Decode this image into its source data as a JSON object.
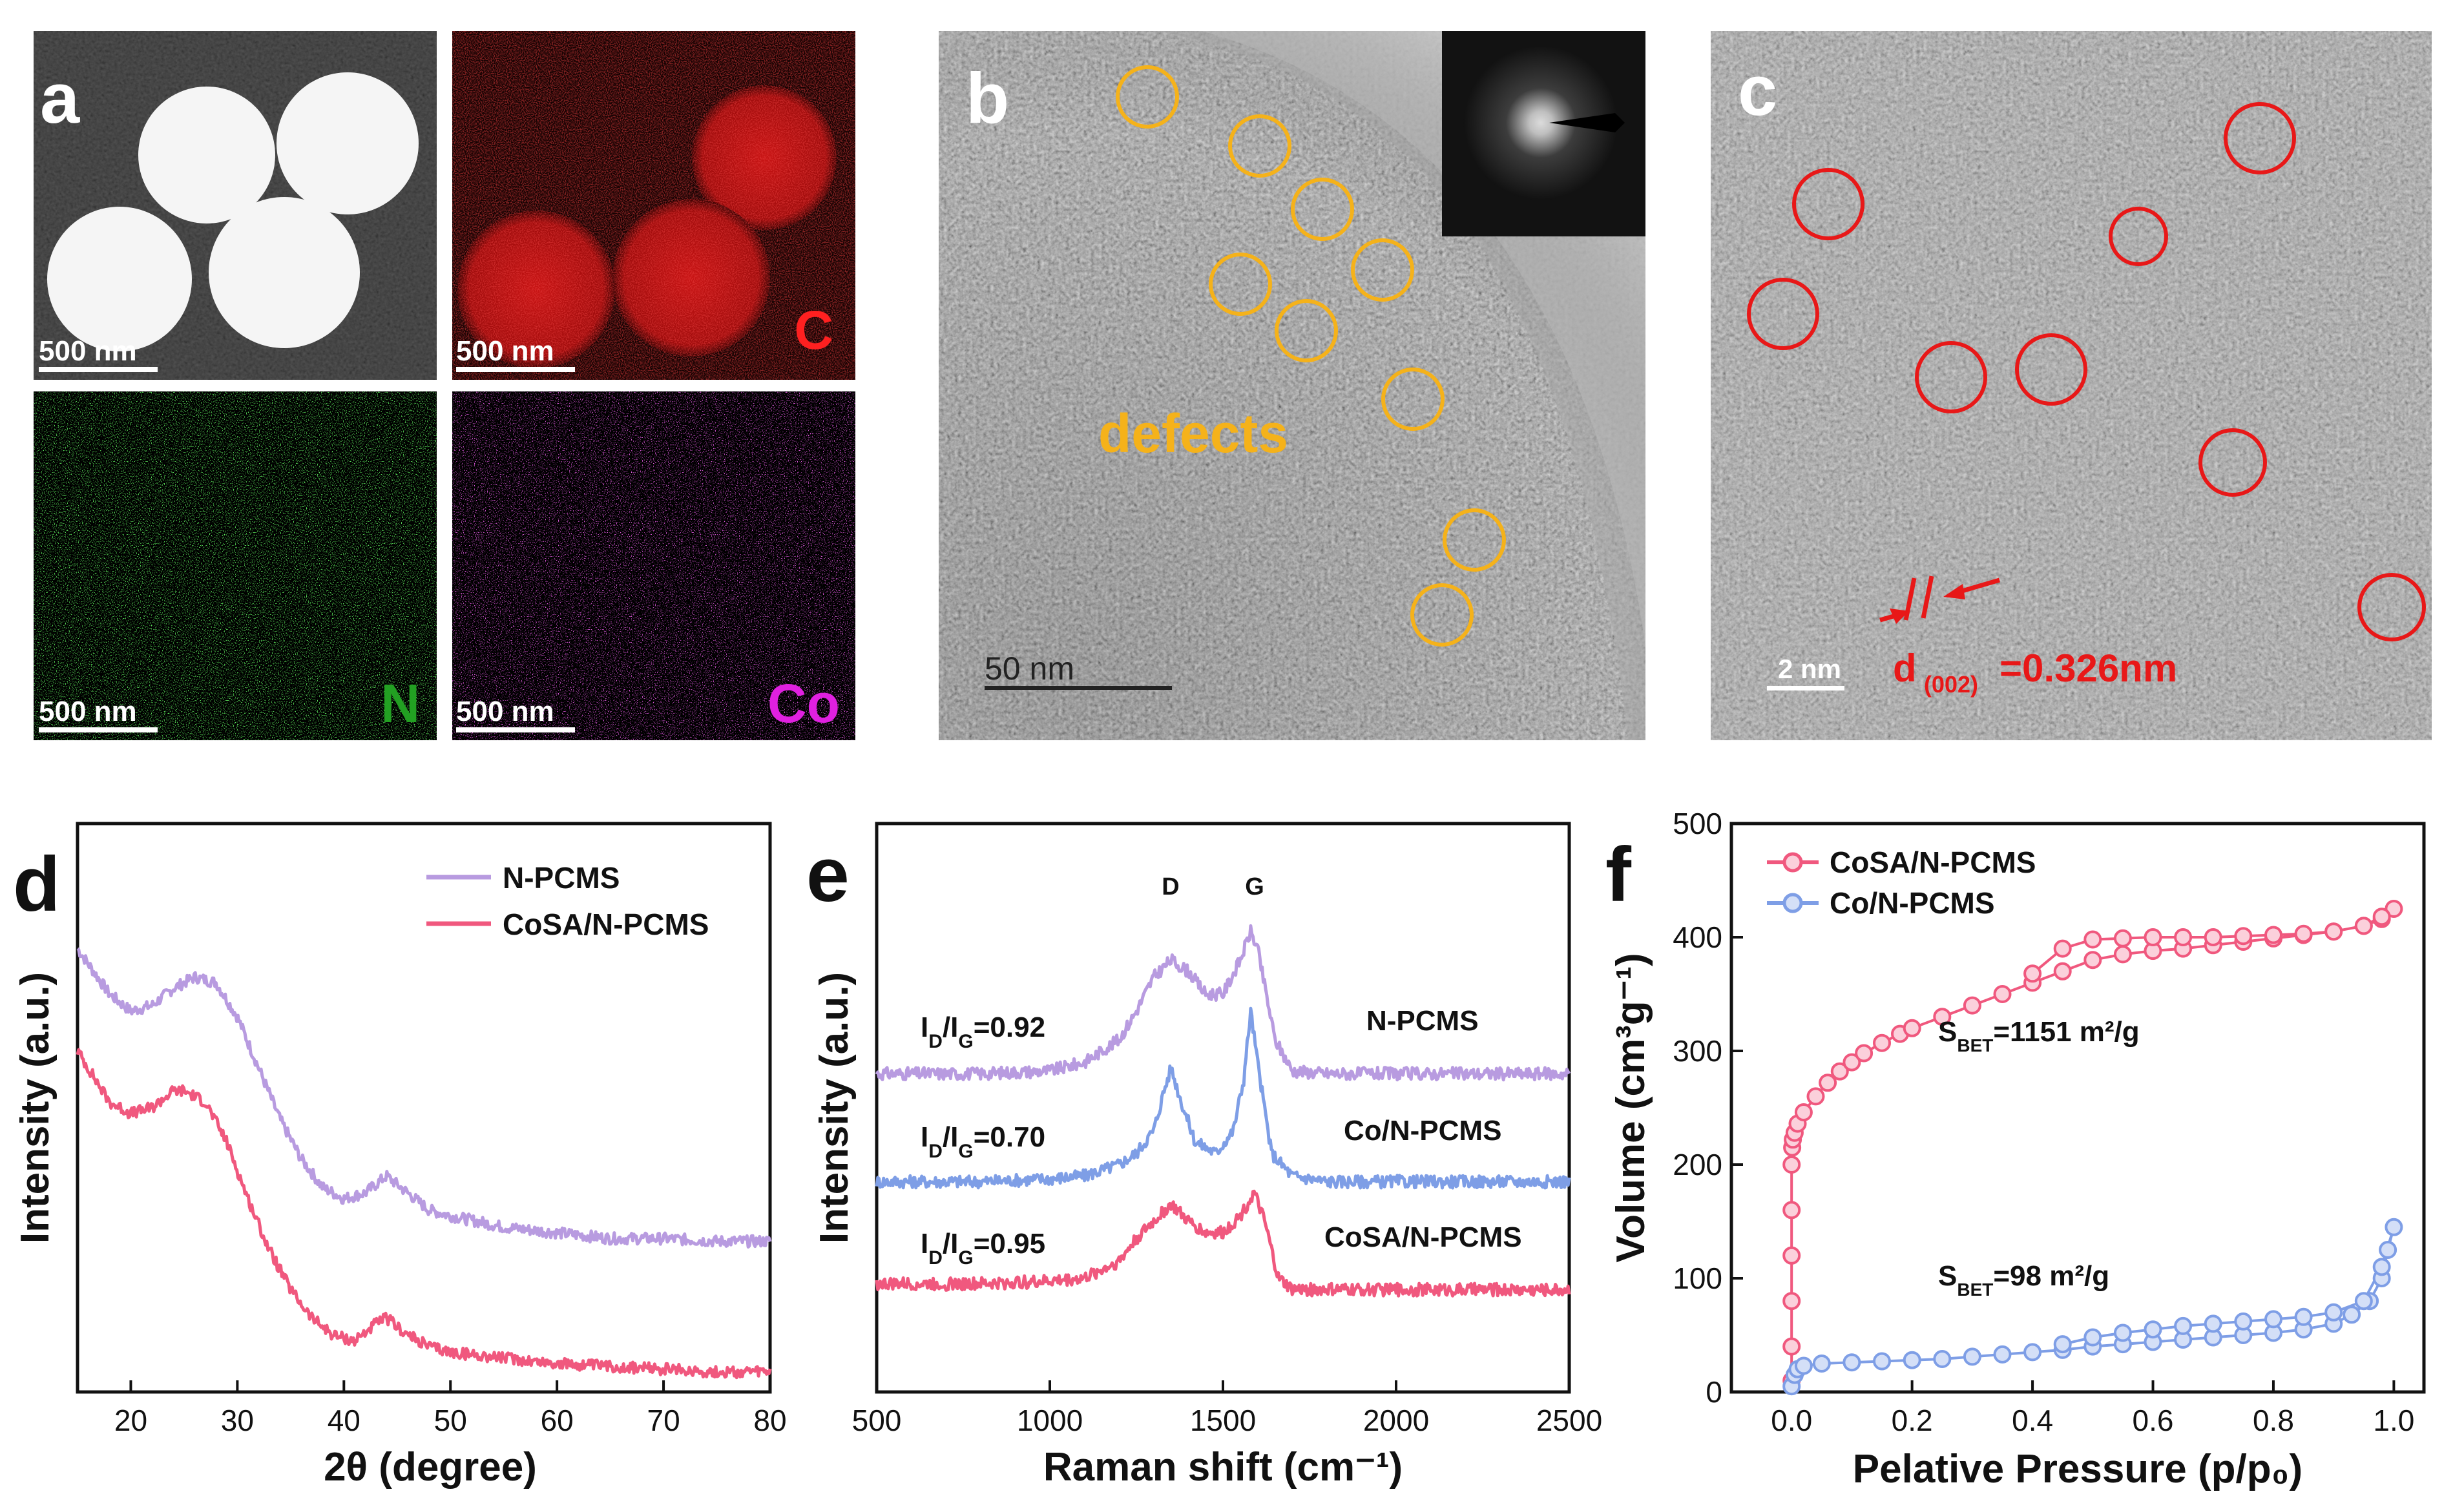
{
  "panel_a": {
    "label": "a",
    "scale_bar": "500 nm",
    "elements": [
      "C",
      "N",
      "Co"
    ],
    "colors": {
      "C": "#e01010",
      "N": "#22a022",
      "Co": "#e020e0"
    }
  },
  "panel_b": {
    "label": "b",
    "annotation": "defects",
    "scale_bar": "50 nm",
    "circle_color": "#f5b21a"
  },
  "panel_c": {
    "label": "c",
    "scale_bar": "2 nm",
    "d_prefix": "d",
    "d_subscript": "(002)",
    "d_value": "=0.326nm",
    "circle_color": "#e81818"
  },
  "chart_data": [
    {
      "panel": "d",
      "type": "line",
      "xlabel": "2θ (degree)",
      "ylabel": "Intensity (a.u.)",
      "xlim": [
        15,
        80
      ],
      "xticks": [
        20,
        30,
        40,
        50,
        60,
        70,
        80
      ],
      "ylim": [
        0,
        1
      ],
      "series": [
        {
          "name": "N-PCMS",
          "color": "#b89be0",
          "x": [
            15,
            18,
            20,
            22,
            24,
            26,
            28,
            30,
            32,
            34,
            36,
            38,
            40,
            42,
            44,
            46,
            48,
            50,
            55,
            60,
            65,
            70,
            75,
            80
          ],
          "y": [
            0.78,
            0.7,
            0.67,
            0.68,
            0.71,
            0.73,
            0.72,
            0.66,
            0.57,
            0.48,
            0.41,
            0.36,
            0.34,
            0.35,
            0.38,
            0.35,
            0.32,
            0.31,
            0.29,
            0.28,
            0.27,
            0.27,
            0.265,
            0.265
          ]
        },
        {
          "name": "CoSA/N-PCMS",
          "color": "#f0587e",
          "x": [
            15,
            18,
            20,
            22,
            24,
            25,
            27,
            29,
            31,
            33,
            35,
            37,
            39,
            41,
            43,
            44,
            46,
            48,
            50,
            55,
            60,
            65,
            70,
            75,
            80
          ],
          "y": [
            0.6,
            0.51,
            0.49,
            0.5,
            0.53,
            0.53,
            0.51,
            0.44,
            0.34,
            0.25,
            0.18,
            0.13,
            0.1,
            0.09,
            0.12,
            0.13,
            0.1,
            0.08,
            0.07,
            0.06,
            0.05,
            0.045,
            0.04,
            0.035,
            0.035
          ]
        }
      ]
    },
    {
      "panel": "e",
      "type": "line",
      "xlabel": "Raman shift (cm⁻¹)",
      "ylabel": "Intensity (a.u.)",
      "xlim": [
        500,
        2500
      ],
      "xticks": [
        500,
        1000,
        1500,
        2000,
        2500
      ],
      "ylim": [
        0,
        1
      ],
      "peak_labels": [
        "D",
        "G"
      ],
      "ratio_labels": [
        "I_D/I_G=0.92",
        "I_D/I_G=0.70",
        "I_D/I_G=0.95"
      ],
      "series": [
        {
          "name": "N-PCMS",
          "color": "#b89be0",
          "x": [
            500,
            800,
            1000,
            1100,
            1200,
            1250,
            1300,
            1350,
            1400,
            1450,
            1500,
            1550,
            1580,
            1600,
            1650,
            1700,
            1800,
            2000,
            2200,
            2500
          ],
          "y": [
            0.56,
            0.56,
            0.565,
            0.58,
            0.62,
            0.67,
            0.73,
            0.76,
            0.74,
            0.7,
            0.7,
            0.76,
            0.81,
            0.78,
            0.62,
            0.565,
            0.56,
            0.56,
            0.56,
            0.56
          ]
        },
        {
          "name": "Co/N-PCMS",
          "color": "#7e9ee6",
          "x": [
            500,
            800,
            1000,
            1100,
            1200,
            1250,
            1300,
            1330,
            1350,
            1380,
            1420,
            1480,
            1530,
            1560,
            1580,
            1600,
            1640,
            1700,
            1800,
            2000,
            2500
          ],
          "y": [
            0.37,
            0.37,
            0.375,
            0.38,
            0.4,
            0.42,
            0.46,
            0.53,
            0.57,
            0.51,
            0.44,
            0.42,
            0.46,
            0.55,
            0.67,
            0.58,
            0.42,
            0.38,
            0.37,
            0.37,
            0.37
          ]
        },
        {
          "name": "CoSA/N-PCMS",
          "color": "#f0587e",
          "x": [
            500,
            800,
            1000,
            1100,
            1200,
            1250,
            1300,
            1350,
            1400,
            1450,
            1500,
            1550,
            1590,
            1620,
            1660,
            1700,
            1800,
            2000,
            2500
          ],
          "y": [
            0.19,
            0.19,
            0.195,
            0.2,
            0.23,
            0.27,
            0.3,
            0.33,
            0.3,
            0.28,
            0.28,
            0.31,
            0.35,
            0.3,
            0.2,
            0.18,
            0.18,
            0.18,
            0.18
          ]
        }
      ]
    },
    {
      "panel": "f",
      "type": "scatter",
      "xlabel": "Pelative Pressure (p/p₀)",
      "ylabel": "Volume (cm³g⁻¹)",
      "xlim": [
        -0.1,
        1.05
      ],
      "xticks": [
        0.0,
        0.2,
        0.4,
        0.6,
        0.8,
        1.0
      ],
      "ylim": [
        0,
        500
      ],
      "yticks": [
        0,
        100,
        200,
        300,
        400,
        500
      ],
      "annotations": [
        "S_BET=1151 m²/g",
        "S_BET=98 m²/g"
      ],
      "series": [
        {
          "name": "CoSA/N-PCMS",
          "color": "#f0587e",
          "marker": "open-circle",
          "x": [
            0.0,
            0.0,
            0.0,
            0.0,
            0.0,
            0.0,
            0.001,
            0.002,
            0.005,
            0.01,
            0.02,
            0.04,
            0.06,
            0.08,
            0.1,
            0.12,
            0.15,
            0.18,
            0.2,
            0.25,
            0.3,
            0.35,
            0.4,
            0.45,
            0.5,
            0.55,
            0.6,
            0.65,
            0.7,
            0.75,
            0.8,
            0.85,
            0.9,
            0.95,
            0.98,
            1.0,
            0.98,
            0.95,
            0.9,
            0.85,
            0.8,
            0.75,
            0.7,
            0.65,
            0.6,
            0.55,
            0.5,
            0.45,
            0.4
          ],
          "y": [
            10,
            40,
            80,
            120,
            160,
            200,
            215,
            222,
            228,
            236,
            246,
            260,
            272,
            282,
            290,
            298,
            307,
            315,
            320,
            330,
            340,
            350,
            360,
            370,
            380,
            385,
            388,
            390,
            393,
            396,
            399,
            402,
            405,
            410,
            416,
            425,
            418,
            410,
            405,
            403,
            402,
            401,
            400,
            400,
            400,
            399,
            398,
            390,
            368
          ]
        },
        {
          "name": "Co/N-PCMS",
          "color": "#7e9ee6",
          "marker": "open-circle",
          "x": [
            0.0,
            0.005,
            0.01,
            0.02,
            0.05,
            0.1,
            0.15,
            0.2,
            0.25,
            0.3,
            0.35,
            0.4,
            0.45,
            0.5,
            0.55,
            0.6,
            0.65,
            0.7,
            0.75,
            0.8,
            0.85,
            0.9,
            0.93,
            0.96,
            0.98,
            0.99,
            1.0,
            0.98,
            0.95,
            0.9,
            0.85,
            0.8,
            0.75,
            0.7,
            0.65,
            0.6,
            0.55,
            0.5,
            0.45
          ],
          "y": [
            5,
            15,
            20,
            23,
            25,
            26,
            27,
            28,
            29,
            31,
            33,
            35,
            37,
            40,
            42,
            44,
            46,
            48,
            50,
            52,
            55,
            60,
            68,
            80,
            100,
            125,
            145,
            110,
            80,
            70,
            66,
            64,
            62,
            60,
            58,
            55,
            52,
            48,
            42
          ]
        }
      ]
    }
  ]
}
